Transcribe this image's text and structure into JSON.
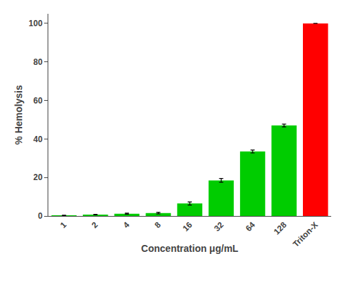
{
  "chart_data": {
    "type": "bar",
    "categories": [
      "1",
      "2",
      "4",
      "8",
      "16",
      "32",
      "64",
      "128",
      "Triton-X"
    ],
    "values": [
      0.3,
      0.7,
      1.2,
      1.5,
      6.5,
      18.5,
      33.5,
      47.0,
      100.0
    ],
    "errors": [
      0.1,
      0.15,
      0.25,
      0.4,
      0.8,
      1.0,
      0.8,
      0.7,
      0.0
    ],
    "colors": [
      "#00cc00",
      "#00cc00",
      "#00cc00",
      "#00cc00",
      "#00cc00",
      "#00cc00",
      "#00cc00",
      "#00cc00",
      "#ff0000"
    ],
    "xlabel": "Concentration μg/mL",
    "ylabel": "% Hemolysis",
    "ylim": [
      0,
      105
    ],
    "yticks": [
      0,
      20,
      40,
      60,
      80,
      100
    ],
    "grid": false
  }
}
